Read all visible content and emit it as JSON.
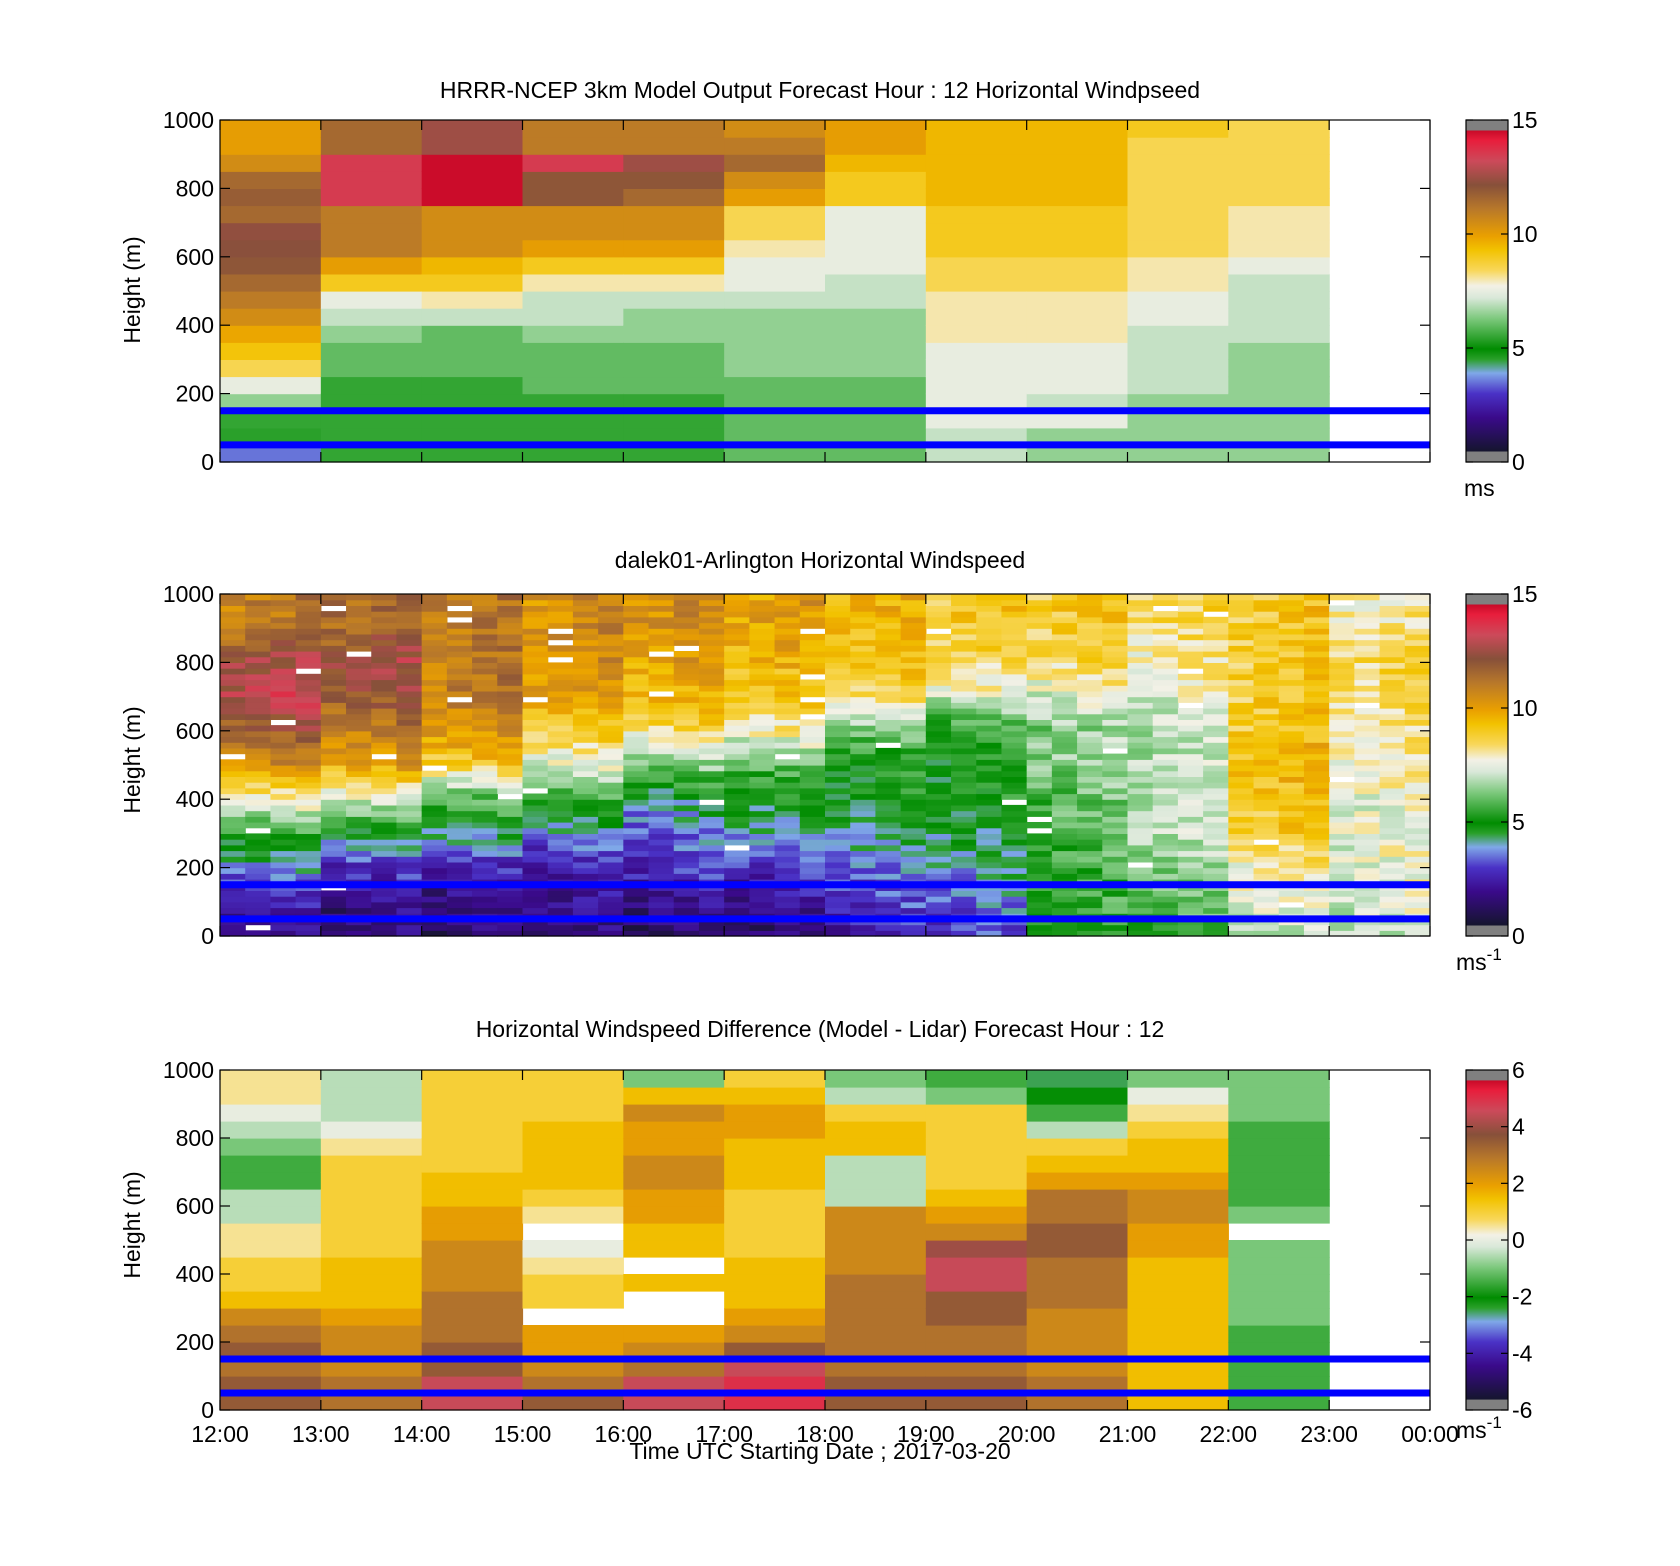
{
  "chart_data": [
    {
      "type": "heatmap",
      "title": "HRRR-NCEP 3km Model Output   Forecast Hour : 12 Horizontal Windpseed",
      "ylabel": "Height (m)",
      "ylim": [
        0,
        1000
      ],
      "yticks": [
        "0",
        "200",
        "400",
        "600",
        "800",
        "1000"
      ],
      "xlim": [
        "12:00",
        "00:00"
      ],
      "colorbar": {
        "range": [
          0,
          15
        ],
        "ticks": [
          "0",
          "5",
          "10",
          "15"
        ],
        "unit": "ms",
        "unit_sup": ""
      },
      "reference_lines_m": [
        50,
        150
      ],
      "reference_line_color": "#0000ff",
      "hours": [
        "12:00",
        "13:00",
        "14:00",
        "15:00",
        "16:00",
        "17:00",
        "18:00",
        "19:00",
        "20:00",
        "21:00",
        "22:00"
      ],
      "profiles": [
        [
          3.5,
          4.5,
          5.5,
          6.5,
          7.5,
          8.5,
          9.2,
          9.8,
          10.5,
          11.0,
          11.5,
          12.0,
          12.2,
          12.3,
          11.5,
          11.8,
          11.5,
          10.5,
          10.0,
          10.0
        ],
        [
          5.5,
          5.5,
          5.5,
          5.5,
          5.5,
          6.0,
          6.0,
          6.5,
          7.0,
          7.5,
          9.0,
          10.0,
          11.0,
          11.0,
          11.0,
          13.5,
          13.5,
          13.5,
          11.5,
          11.5
        ],
        [
          5.5,
          5.5,
          5.5,
          5.5,
          5.5,
          6.0,
          6.0,
          6.0,
          7.0,
          8.0,
          9.0,
          9.5,
          10.5,
          10.5,
          10.5,
          14.5,
          14.5,
          14.5,
          12.5,
          12.5
        ],
        [
          5.5,
          5.5,
          5.5,
          5.5,
          6.0,
          6.0,
          6.0,
          6.5,
          7.0,
          7.0,
          8.0,
          9.0,
          10.0,
          10.5,
          10.5,
          12.0,
          12.0,
          13.5,
          11.0,
          11.0
        ],
        [
          5.5,
          5.5,
          5.5,
          5.5,
          6.0,
          6.0,
          6.0,
          6.5,
          6.5,
          7.0,
          8.0,
          9.0,
          10.0,
          10.5,
          10.5,
          11.5,
          12.0,
          12.5,
          11.0,
          11.0
        ],
        [
          6.0,
          6.0,
          6.0,
          6.0,
          6.0,
          6.5,
          6.5,
          6.5,
          6.5,
          7.0,
          7.5,
          7.5,
          8.0,
          8.5,
          8.5,
          10.0,
          10.5,
          11.5,
          11.0,
          10.5
        ],
        [
          6.0,
          6.0,
          6.0,
          6.0,
          6.0,
          6.5,
          6.5,
          6.5,
          6.5,
          7.0,
          7.0,
          7.5,
          7.5,
          7.5,
          7.5,
          9.0,
          9.0,
          9.5,
          10.0,
          10.0
        ],
        [
          7.0,
          7.0,
          7.5,
          7.5,
          7.5,
          7.5,
          7.5,
          8.0,
          8.0,
          8.0,
          8.5,
          8.5,
          9.0,
          9.0,
          9.0,
          9.5,
          9.5,
          9.5,
          9.5,
          9.5
        ],
        [
          6.5,
          6.5,
          7.5,
          7.0,
          7.5,
          7.5,
          7.5,
          8.0,
          8.0,
          8.0,
          8.5,
          8.5,
          9.0,
          9.0,
          9.0,
          9.5,
          9.5,
          9.5,
          9.5,
          9.5
        ],
        [
          6.5,
          6.5,
          6.5,
          6.5,
          7.0,
          7.0,
          7.0,
          7.0,
          7.5,
          7.5,
          8.0,
          8.0,
          8.5,
          8.5,
          8.5,
          8.5,
          8.5,
          8.5,
          8.5,
          9.0
        ],
        [
          6.5,
          6.5,
          6.5,
          6.5,
          6.5,
          6.5,
          6.5,
          7.0,
          7.0,
          7.0,
          7.0,
          7.5,
          8.0,
          8.0,
          8.0,
          8.5,
          8.5,
          8.5,
          8.5,
          8.5
        ]
      ]
    },
    {
      "type": "heatmap",
      "title": "dalek01-Arlington  Horizontal Windspeed",
      "ylabel": "Height (m)",
      "ylim": [
        0,
        1000
      ],
      "yticks": [
        "0",
        "200",
        "400",
        "600",
        "800",
        "1000"
      ],
      "xlim": [
        "12:00",
        "00:00"
      ],
      "colorbar": {
        "range": [
          0,
          15
        ],
        "ticks": [
          "0",
          "5",
          "10",
          "15"
        ],
        "unit": "ms",
        "unit_sup": "-1"
      },
      "reference_lines_m": [
        50,
        150
      ],
      "reference_line_color": "#0000ff",
      "hours": [
        "12:00",
        "13:00",
        "14:00",
        "15:00",
        "16:00",
        "17:00",
        "18:00",
        "19:00",
        "20:00",
        "21:00",
        "22:00",
        "23:00"
      ],
      "profiles": [
        [
          2.0,
          2.5,
          4.0,
          5.5,
          8.0,
          10.5,
          12.0,
          13.0,
          12.5,
          11.0
        ],
        [
          1.5,
          2.0,
          3.0,
          5.0,
          7.5,
          10.0,
          11.0,
          12.0,
          12.5,
          11.5
        ],
        [
          1.5,
          2.0,
          2.5,
          4.5,
          6.0,
          9.0,
          10.5,
          11.0,
          11.0,
          11.0
        ],
        [
          1.5,
          2.0,
          2.5,
          4.0,
          5.5,
          7.5,
          9.0,
          10.0,
          10.5,
          10.5
        ],
        [
          1.5,
          2.0,
          3.0,
          3.5,
          4.5,
          6.5,
          8.5,
          9.5,
          10.0,
          10.5
        ],
        [
          1.5,
          2.0,
          3.0,
          4.0,
          5.0,
          6.0,
          8.0,
          9.0,
          9.5,
          10.0
        ],
        [
          2.5,
          3.0,
          3.5,
          4.5,
          5.0,
          5.0,
          6.5,
          8.5,
          9.0,
          9.5
        ],
        [
          3.0,
          3.5,
          4.0,
          4.5,
          5.0,
          5.0,
          5.5,
          7.5,
          8.5,
          9.0
        ],
        [
          5.0,
          5.5,
          5.5,
          6.0,
          6.0,
          6.5,
          6.5,
          7.5,
          8.5,
          9.0
        ],
        [
          5.5,
          6.0,
          6.5,
          7.0,
          7.0,
          7.0,
          7.0,
          7.5,
          8.0,
          8.5
        ],
        [
          7.0,
          7.5,
          8.0,
          9.0,
          9.0,
          9.5,
          9.0,
          9.0,
          9.0,
          9.0
        ],
        [
          7.0,
          7.5,
          7.5,
          7.5,
          7.5,
          8.0,
          8.0,
          8.5,
          8.5,
          8.0
        ]
      ]
    },
    {
      "type": "heatmap",
      "title": "Horizontal Windspeed Difference (Model - Lidar) Forecast Hour : 12",
      "ylabel": "Height (m)",
      "xlabel": "Time UTC  Starting Date ; 2017-03-20",
      "ylim": [
        0,
        1000
      ],
      "yticks": [
        "0",
        "200",
        "400",
        "600",
        "800",
        "1000"
      ],
      "xticks": [
        "12:00",
        "13:00",
        "14:00",
        "15:00",
        "16:00",
        "17:00",
        "18:00",
        "19:00",
        "20:00",
        "21:00",
        "22:00",
        "23:00",
        "00:00"
      ],
      "xlim": [
        "12:00",
        "00:00"
      ],
      "colorbar": {
        "range": [
          -6,
          6
        ],
        "ticks": [
          "-6",
          "-4",
          "-2",
          "0",
          "2",
          "4",
          "6"
        ],
        "unit": "ms",
        "unit_sup": "-1"
      },
      "reference_lines_m": [
        50,
        150
      ],
      "reference_line_color": "#0000ff",
      "hours": [
        "12:00",
        "13:00",
        "14:00",
        "15:00",
        "16:00",
        "17:00",
        "18:00",
        "19:00",
        "20:00",
        "21:00",
        "22:00"
      ],
      "profiles": [
        [
          3.5,
          3.5,
          3.0,
          3.5,
          3.0,
          2.5,
          1.5,
          1.0,
          1.0,
          0.5,
          0.5,
          -0.5,
          -0.5,
          -1.5,
          -1.5,
          -1.0,
          -0.5,
          0.0,
          0.5,
          0.5
        ],
        [
          3.0,
          3.0,
          2.5,
          2.5,
          2.5,
          2.0,
          1.5,
          1.5,
          1.5,
          1.0,
          1.0,
          1.0,
          1.0,
          1.0,
          1.0,
          0.5,
          0.0,
          -0.5,
          -0.5,
          -0.5
        ],
        [
          4.5,
          4.5,
          3.5,
          3.5,
          3.0,
          3.0,
          3.0,
          2.5,
          2.5,
          2.5,
          2.0,
          2.0,
          1.5,
          1.5,
          1.0,
          1.0,
          1.0,
          1.0,
          1.0,
          1.0
        ],
        [
          3.5,
          3.0,
          2.5,
          2.0,
          2.0,
          null,
          1.0,
          1.0,
          0.5,
          0.0,
          null,
          0.5,
          1.0,
          1.5,
          1.5,
          1.5,
          1.5,
          1.0,
          1.0,
          1.0
        ],
        [
          4.5,
          4.5,
          3.0,
          2.5,
          2.0,
          null,
          null,
          1.5,
          null,
          1.5,
          1.5,
          2.0,
          2.0,
          2.5,
          2.5,
          2.0,
          2.0,
          2.5,
          1.5,
          -1.0
        ],
        [
          5.0,
          5.0,
          4.5,
          3.5,
          2.5,
          2.0,
          1.5,
          1.5,
          1.5,
          1.0,
          1.0,
          1.0,
          1.0,
          1.5,
          1.5,
          1.5,
          2.0,
          2.0,
          1.5,
          1.0
        ],
        [
          3.5,
          3.5,
          3.0,
          3.0,
          3.0,
          3.0,
          3.0,
          3.0,
          2.5,
          2.5,
          2.5,
          2.5,
          -0.5,
          -0.5,
          -0.5,
          1.5,
          1.5,
          1.0,
          -0.5,
          -1.0
        ],
        [
          3.5,
          3.5,
          3.0,
          3.0,
          3.0,
          3.5,
          3.5,
          4.5,
          4.5,
          4.0,
          2.5,
          2.0,
          1.5,
          1.0,
          1.0,
          1.0,
          1.0,
          1.0,
          -1.0,
          -1.5
        ],
        [
          3.0,
          3.0,
          2.5,
          2.5,
          2.5,
          2.5,
          3.0,
          3.0,
          3.0,
          3.5,
          3.5,
          3.0,
          3.0,
          2.0,
          1.5,
          1.0,
          -0.5,
          -1.5,
          -2.0,
          -2.5
        ],
        [
          1.5,
          1.5,
          1.5,
          1.5,
          1.5,
          1.5,
          1.5,
          1.5,
          1.5,
          2.0,
          2.0,
          2.5,
          2.5,
          2.0,
          1.5,
          1.5,
          1.0,
          0.5,
          0.0,
          -1.0
        ],
        [
          -1.5,
          -1.5,
          -1.5,
          -1.5,
          -1.5,
          -1.0,
          -1.0,
          -1.0,
          -1.0,
          -1.0,
          null,
          -1.0,
          -1.5,
          -1.5,
          -1.5,
          -1.5,
          -1.5,
          -1.0,
          -1.0,
          -1.0
        ]
      ]
    }
  ]
}
